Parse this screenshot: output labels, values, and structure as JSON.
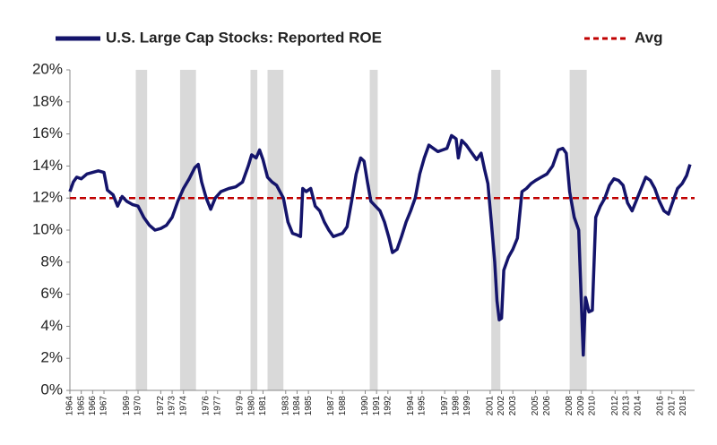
{
  "chart_data": {
    "type": "line",
    "xlim": [
      1964,
      2019
    ],
    "xticks": [
      1964,
      1965,
      1966,
      1967,
      1969,
      1970,
      1972,
      1973,
      1974,
      1976,
      1977,
      1979,
      1980,
      1981,
      1983,
      1984,
      1985,
      1987,
      1988,
      1990,
      1991,
      1992,
      1994,
      1995,
      1997,
      1998,
      1999,
      2001,
      2002,
      2003,
      2005,
      2006,
      2008,
      2009,
      2010,
      2012,
      2013,
      2014,
      2016,
      2017,
      2018
    ],
    "ylim": [
      0,
      20
    ],
    "yticks": [
      {
        "value": 0,
        "label": "0%"
      },
      {
        "value": 2,
        "label": "2%"
      },
      {
        "value": 4,
        "label": "4%"
      },
      {
        "value": 6,
        "label": "6%"
      },
      {
        "value": 8,
        "label": "8%"
      },
      {
        "value": 10,
        "label": "10%"
      },
      {
        "value": 12,
        "label": "12%"
      },
      {
        "value": 14,
        "label": "14%"
      },
      {
        "value": 16,
        "label": "16%"
      },
      {
        "value": 18,
        "label": "18%"
      },
      {
        "value": 20,
        "label": "20%"
      }
    ],
    "shaded_periods": [
      [
        1969.8,
        1970.8
      ],
      [
        1973.7,
        1975.1
      ],
      [
        1979.9,
        1980.5
      ],
      [
        1981.4,
        1982.8
      ],
      [
        1990.4,
        1991.1
      ],
      [
        2001.1,
        2001.9
      ],
      [
        2008.0,
        2009.5
      ]
    ],
    "shade_color": "#d9d9d9",
    "x": [
      1964.0,
      1964.3,
      1964.6,
      1965.0,
      1965.5,
      1966.0,
      1966.5,
      1967.0,
      1967.3,
      1967.8,
      1968.2,
      1968.6,
      1969.0,
      1969.5,
      1970.0,
      1970.5,
      1971.0,
      1971.5,
      1972.0,
      1972.5,
      1973.0,
      1973.5,
      1974.0,
      1974.5,
      1975.0,
      1975.3,
      1975.6,
      1976.0,
      1976.4,
      1976.8,
      1977.3,
      1978.0,
      1978.6,
      1979.2,
      1979.7,
      1980.0,
      1980.4,
      1980.7,
      1981.0,
      1981.4,
      1981.8,
      1982.2,
      1982.8,
      1983.2,
      1983.6,
      1984.0,
      1984.3,
      1984.5,
      1984.8,
      1985.2,
      1985.6,
      1986.0,
      1986.4,
      1986.8,
      1987.2,
      1987.6,
      1988.0,
      1988.4,
      1988.8,
      1989.2,
      1989.6,
      1989.9,
      1990.2,
      1990.5,
      1990.9,
      1991.3,
      1991.7,
      1992.1,
      1992.4,
      1992.8,
      1993.2,
      1993.6,
      1994.0,
      1994.4,
      1994.8,
      1995.2,
      1995.6,
      1996.0,
      1996.4,
      1996.8,
      1997.2,
      1997.6,
      1998.0,
      1998.2,
      1998.5,
      1998.9,
      1999.3,
      1999.8,
      2000.2,
      2000.5,
      2000.8,
      2001.1,
      2001.4,
      2001.6,
      2001.8,
      2002.0,
      2002.2,
      2002.6,
      2003.0,
      2003.4,
      2003.8,
      2004.2,
      2004.6,
      2005.0,
      2005.5,
      2006.0,
      2006.5,
      2007.0,
      2007.4,
      2007.7,
      2008.0,
      2008.4,
      2008.8,
      2009.0,
      2009.2,
      2009.4,
      2009.7,
      2010.0,
      2010.3,
      2010.7,
      2011.1,
      2011.5,
      2011.9,
      2012.3,
      2012.7,
      2013.1,
      2013.5,
      2013.9,
      2014.3,
      2014.7,
      2015.1,
      2015.5,
      2015.9,
      2016.3,
      2016.7,
      2017.1,
      2017.5,
      2017.9,
      2018.3,
      2018.6
    ],
    "series": [
      {
        "name": "U.S. Large Cap Stocks: Reported ROE",
        "color": "#14146b",
        "values": [
          12.4,
          13.0,
          13.3,
          13.2,
          13.5,
          13.6,
          13.7,
          13.6,
          12.5,
          12.2,
          11.5,
          12.1,
          11.8,
          11.6,
          11.5,
          10.8,
          10.3,
          10.0,
          10.1,
          10.3,
          10.8,
          11.8,
          12.6,
          13.2,
          13.9,
          14.1,
          13.0,
          12.0,
          11.3,
          12.0,
          12.4,
          12.6,
          12.7,
          13.0,
          14.0,
          14.7,
          14.5,
          15.0,
          14.4,
          13.3,
          13.0,
          12.8,
          12.0,
          10.5,
          9.8,
          9.7,
          9.6,
          12.6,
          12.4,
          12.6,
          11.5,
          11.2,
          10.5,
          10.0,
          9.6,
          9.7,
          9.8,
          10.2,
          11.8,
          13.5,
          14.5,
          14.3,
          13.0,
          11.8,
          11.5,
          11.2,
          10.5,
          9.5,
          8.6,
          8.8,
          9.6,
          10.5,
          11.2,
          12.0,
          13.5,
          14.5,
          15.3,
          15.1,
          14.9,
          15.0,
          15.1,
          15.9,
          15.7,
          14.5,
          15.6,
          15.3,
          14.9,
          14.4,
          14.8,
          13.8,
          12.9,
          10.5,
          8.0,
          5.6,
          4.4,
          4.5,
          7.5,
          8.3,
          8.8,
          9.5,
          12.4,
          12.6,
          12.9,
          13.1,
          13.3,
          13.5,
          14.0,
          15.0,
          15.1,
          14.8,
          12.4,
          10.8,
          10.0,
          6.0,
          2.2,
          5.8,
          4.9,
          5.0,
          10.8,
          11.5,
          12.0,
          12.8,
          13.2,
          13.1,
          12.8,
          11.7,
          11.2,
          11.9,
          12.6,
          13.3,
          13.1,
          12.6,
          11.8,
          11.2,
          11.0,
          11.8,
          12.6,
          12.9,
          13.4,
          14.1
        ]
      }
    ],
    "reference_line": {
      "name": "Avg",
      "value": 12,
      "color": "#c00000"
    }
  }
}
